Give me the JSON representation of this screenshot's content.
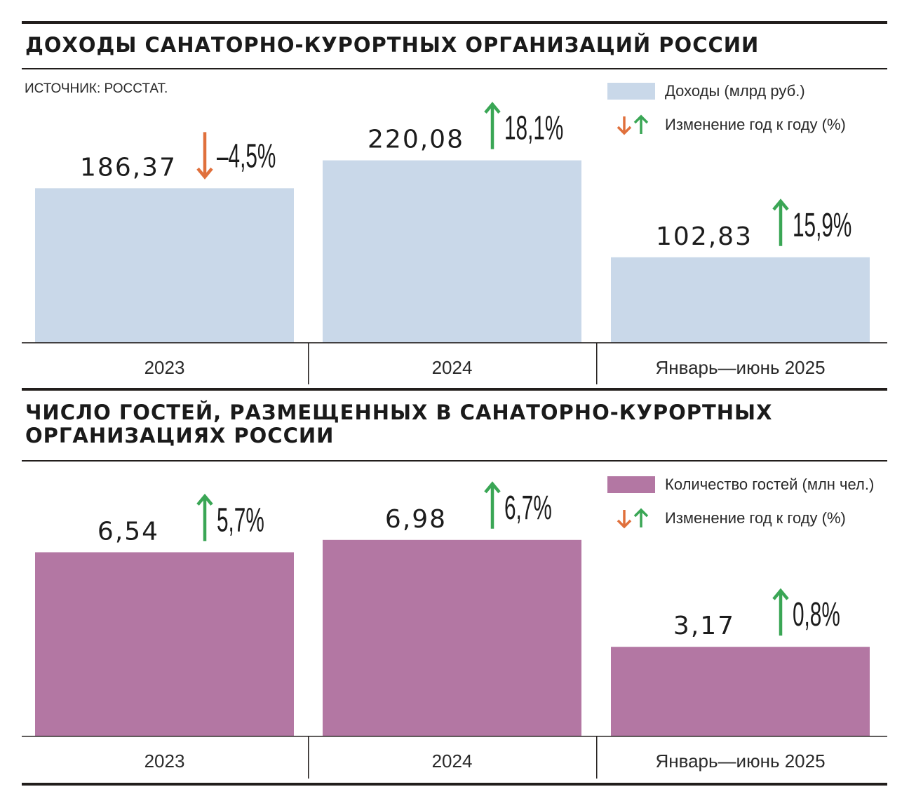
{
  "chart_data": [
    {
      "type": "bar",
      "title": "ДОХОДЫ САНАТОРНО-КУРОРТНЫХ ОРГАНИЗАЦИЙ РОССИИ",
      "source": "ИСТОЧНИК: РОССТАТ.",
      "categories": [
        "2023",
        "2024",
        "Январь—июнь 2025"
      ],
      "series": [
        {
          "name": "Доходы (млрд руб.)",
          "values": [
            186.37,
            220.08,
            102.83
          ],
          "value_labels": [
            "186,37",
            "220,08",
            "102,83"
          ]
        }
      ],
      "changes": [
        {
          "value": -4.5,
          "label": "–4,5%",
          "direction": "down"
        },
        {
          "value": 18.1,
          "label": "18,1%",
          "direction": "up"
        },
        {
          "value": 15.9,
          "label": "15,9%",
          "direction": "up"
        }
      ],
      "legend": {
        "bar": "Доходы (млрд руб.)",
        "change": "Изменение год к году (%)",
        "placement": "top-right"
      },
      "bar_color": "#c9d8e9",
      "ylim": [
        0,
        280
      ]
    },
    {
      "type": "bar",
      "title": "ЧИСЛО ГОСТЕЙ, РАЗМЕЩЕННЫХ В САНАТОРНО-КУРОРТНЫХ ОРГАНИЗАЦИЯХ РОССИИ",
      "categories": [
        "2023",
        "2024",
        "Январь—июнь 2025"
      ],
      "series": [
        {
          "name": "Количество гостей (млн чел.)",
          "values": [
            6.54,
            6.98,
            3.17
          ],
          "value_labels": [
            "6,54",
            "6,98",
            "3,17"
          ]
        }
      ],
      "changes": [
        {
          "value": 5.7,
          "label": "5,7%",
          "direction": "up"
        },
        {
          "value": 6.7,
          "label": "6,7%",
          "direction": "up"
        },
        {
          "value": 0.8,
          "label": "0,8%",
          "direction": "up"
        }
      ],
      "legend": {
        "bar": "Количество гостей (млн чел.)",
        "change": "Изменение год к году (%)",
        "placement": "top-right"
      },
      "bar_color": "#b377a3",
      "ylim": [
        0,
        8.5
      ]
    }
  ],
  "colors": {
    "up_arrow": "#3aa655",
    "down_arrow": "#e0703c",
    "rule": "#221e1c"
  },
  "icons": {
    "up": "arrow-up-icon",
    "down": "arrow-down-icon"
  }
}
